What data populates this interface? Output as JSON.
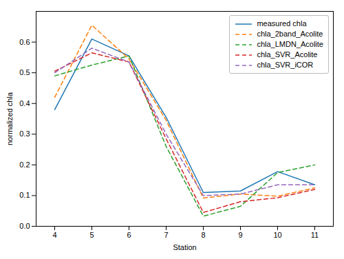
{
  "chart_data": {
    "type": "line",
    "x": [
      4,
      5,
      6,
      7,
      8,
      9,
      10,
      11
    ],
    "xlabel": "Station",
    "ylabel": "normalized chla",
    "xlim": [
      3.5,
      11.5
    ],
    "ylim": [
      0.0,
      0.7
    ],
    "xticks": [
      4,
      5,
      6,
      7,
      8,
      9,
      10,
      11
    ],
    "yticks": [
      {
        "value": 0,
        "label": "0.0"
      },
      0.1,
      0.2,
      0.3,
      0.4,
      0.5,
      0.6
    ],
    "legend": "upper right",
    "grid": false,
    "series": [
      {
        "name": "measured chla",
        "color": "#1f77b4",
        "line_style": "solid",
        "values": [
          0.38,
          0.61,
          0.555,
          0.355,
          0.11,
          0.115,
          0.178,
          0.135
        ]
      },
      {
        "name": "chla_2band_Acolite",
        "color": "#ff7f0e",
        "line_style": "dashed",
        "values": [
          0.42,
          0.655,
          0.545,
          0.345,
          0.092,
          0.105,
          0.098,
          0.125
        ]
      },
      {
        "name": "chla_LMDN_Acolite",
        "color": "#2ca02c",
        "line_style": "dashed",
        "values": [
          0.49,
          0.525,
          0.555,
          0.26,
          0.033,
          0.065,
          0.175,
          0.2
        ]
      },
      {
        "name": "chla_SVR_Acolite",
        "color": "#d62728",
        "line_style": "dashed",
        "values": [
          0.505,
          0.565,
          0.535,
          0.285,
          0.045,
          0.08,
          0.093,
          0.12
        ]
      },
      {
        "name": "chla_SVR_iCOR",
        "color": "#9467bd",
        "line_style": "dashed",
        "values": [
          0.5,
          0.58,
          0.535,
          0.3,
          0.1,
          0.105,
          0.135,
          0.135
        ]
      }
    ]
  }
}
